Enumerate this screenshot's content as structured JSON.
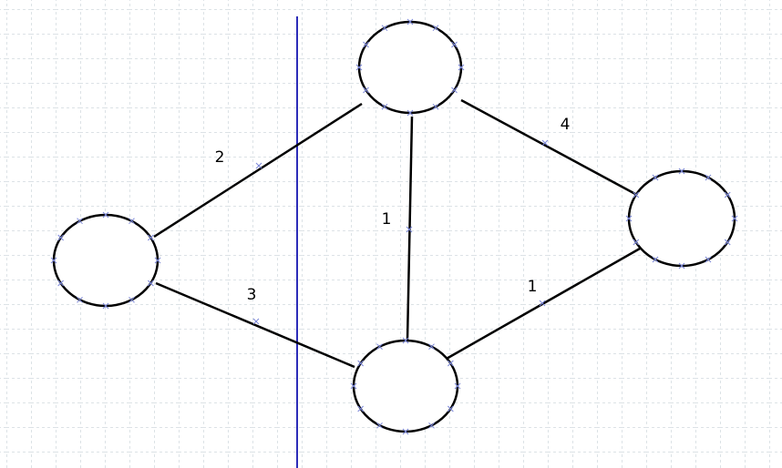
{
  "colors": {
    "background": "#ffffff",
    "grid": "#b8c4cc",
    "divider": "#2c2cb8",
    "edge": "#000000",
    "node_stroke": "#000000",
    "node_fill": "#ffffff",
    "anchor_mark": "#7a86d8"
  },
  "graph": {
    "nodes": [
      {
        "id": "top"
      },
      {
        "id": "left"
      },
      {
        "id": "right"
      },
      {
        "id": "bottom"
      }
    ],
    "edges": [
      {
        "from": "left",
        "to": "top",
        "label": "2"
      },
      {
        "from": "top",
        "to": "right",
        "label": "4"
      },
      {
        "from": "top",
        "to": "bottom",
        "label": "1"
      },
      {
        "from": "left",
        "to": "bottom",
        "label": "3"
      },
      {
        "from": "bottom",
        "to": "right",
        "label": "1"
      }
    ]
  }
}
